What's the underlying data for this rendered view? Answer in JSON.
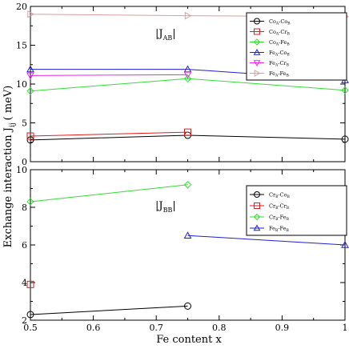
{
  "chart_data": {
    "type": "line",
    "xlabel": "Fe content x",
    "ylabel_main": "Exchange interaction J",
    "ylabel_sub": "ij",
    "ylabel_unit": "( meV)",
    "xlim": [
      0.5,
      1.0
    ],
    "xticks": [
      "0.5",
      "0.6",
      "0.7",
      "0.8",
      "0.9",
      "1"
    ],
    "panels": [
      {
        "id": "top",
        "label_main": "|J",
        "label_sub": "AB",
        "label_end": "|",
        "ylim": [
          0,
          20
        ],
        "yticks": [
          "0",
          "5",
          "10",
          "15",
          "20"
        ],
        "series": [
          {
            "name_a": "Co",
            "sub_a": "A",
            "name_b": "Co",
            "sub_b": "B",
            "color": "#000000",
            "marker": "circle",
            "x": [
              0.5,
              0.75,
              1.0
            ],
            "y": [
              2.8,
              3.4,
              2.9
            ]
          },
          {
            "name_a": "Co",
            "sub_a": "A",
            "name_b": "Cr",
            "sub_b": "B",
            "color": "#e31a1c",
            "marker": "square",
            "x": [
              0.5,
              0.75
            ],
            "y": [
              3.3,
              3.8
            ]
          },
          {
            "name_a": "Co",
            "sub_a": "A",
            "name_b": "Fe",
            "sub_b": "B",
            "color": "#33dd33",
            "marker": "diamond",
            "x": [
              0.5,
              0.75,
              1.0
            ],
            "y": [
              9.1,
              10.7,
              9.2
            ]
          },
          {
            "name_a": "Fe",
            "sub_a": "A",
            "name_b": "Co",
            "sub_b": "B",
            "color": "#1f1fcc",
            "marker": "triangle-up",
            "x": [
              0.5,
              0.75,
              1.0
            ],
            "y": [
              11.9,
              11.9,
              10.5
            ]
          },
          {
            "name_a": "Fe",
            "sub_a": "A",
            "name_b": "Cr",
            "sub_b": "B",
            "color": "#ee22ee",
            "marker": "triangle-down",
            "x": [
              0.5,
              0.75
            ],
            "y": [
              11.1,
              11.2
            ]
          },
          {
            "name_a": "Fe",
            "sub_a": "A",
            "name_b": "Fe",
            "sub_b": "B",
            "color": "#d9a0a0",
            "marker": "triangle-right",
            "x": [
              0.5,
              0.75,
              1.0
            ],
            "y": [
              19.0,
              18.8,
              18.7
            ]
          }
        ]
      },
      {
        "id": "bottom",
        "label_main": "|J",
        "label_sub": "BB",
        "label_end": "|",
        "ylim": [
          2,
          10
        ],
        "yticks": [
          "2",
          "4",
          "6",
          "8",
          "10"
        ],
        "series": [
          {
            "name_a": "Cr",
            "sub_a": "B",
            "name_b": "Co",
            "sub_b": "B",
            "color": "#000000",
            "marker": "circle",
            "x": [
              0.5,
              0.75
            ],
            "y": [
              2.3,
              2.75
            ]
          },
          {
            "name_a": "Cr",
            "sub_a": "B",
            "name_b": "Cr",
            "sub_b": "B",
            "color": "#e31a1c",
            "marker": "square",
            "x": [
              0.5
            ],
            "y": [
              3.9
            ]
          },
          {
            "name_a": "Cr",
            "sub_a": "B",
            "name_b": "Fe",
            "sub_b": "B",
            "color": "#33dd33",
            "marker": "diamond",
            "x": [
              0.5,
              0.75
            ],
            "y": [
              8.3,
              9.2
            ]
          },
          {
            "name_a": "Fe",
            "sub_a": "B",
            "name_b": "Fe",
            "sub_b": "B",
            "color": "#1f1fcc",
            "marker": "triangle-up",
            "x": [
              0.75,
              1.0
            ],
            "y": [
              6.5,
              6.0
            ]
          }
        ]
      }
    ]
  }
}
